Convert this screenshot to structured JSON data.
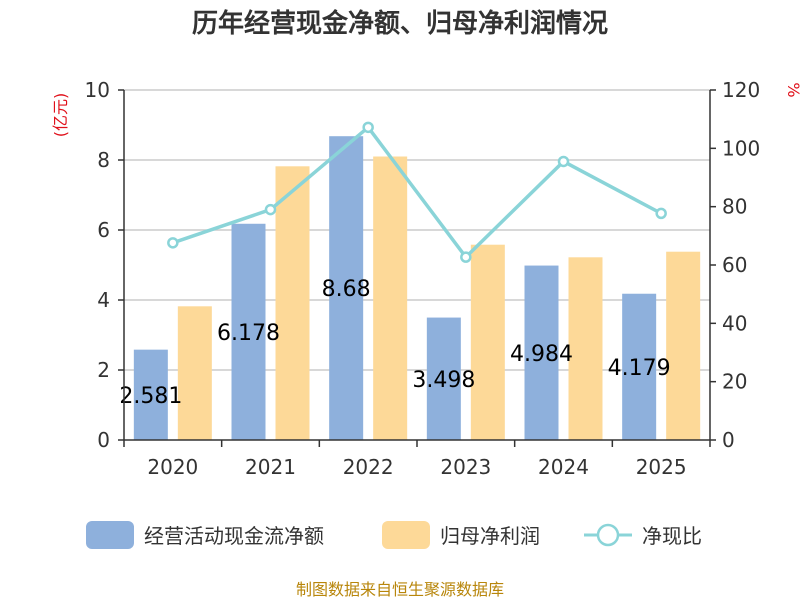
{
  "chart_data": {
    "type": "bar+line",
    "title": "历年经营现金净额、归母净利润情况",
    "categories": [
      "2020",
      "2021",
      "2022",
      "2023",
      "2024",
      "2025"
    ],
    "series": [
      {
        "name": "经营活动现金流净额",
        "type": "bar",
        "axis": "left",
        "color": "#8eb0dc",
        "values": [
          2.581,
          6.178,
          8.68,
          3.498,
          4.984,
          4.179
        ],
        "data_labels": [
          "2.581",
          "6.178",
          "8.68",
          "3.498",
          "4.984",
          "4.179"
        ]
      },
      {
        "name": "归母净利润",
        "type": "bar",
        "axis": "left",
        "color": "#fdd998",
        "values": [
          3.82,
          7.82,
          8.1,
          5.58,
          5.22,
          5.38
        ]
      },
      {
        "name": "净现比",
        "type": "line",
        "axis": "right",
        "color": "#8ad4d8",
        "values": [
          67.6,
          79.0,
          107.2,
          62.7,
          95.5,
          77.7
        ]
      }
    ],
    "ylabel_left": "(亿元)",
    "ylabel_right": "%",
    "ylim_left": [
      0,
      10
    ],
    "yticks_left": [
      "0",
      "2",
      "4",
      "6",
      "8",
      "10"
    ],
    "ylim_right": [
      0,
      120
    ],
    "yticks_right": [
      "0",
      "20",
      "40",
      "60",
      "80",
      "100",
      "120"
    ],
    "grid": true,
    "legend_position": "bottom",
    "source": "制图数据来自恒生聚源数据库"
  }
}
